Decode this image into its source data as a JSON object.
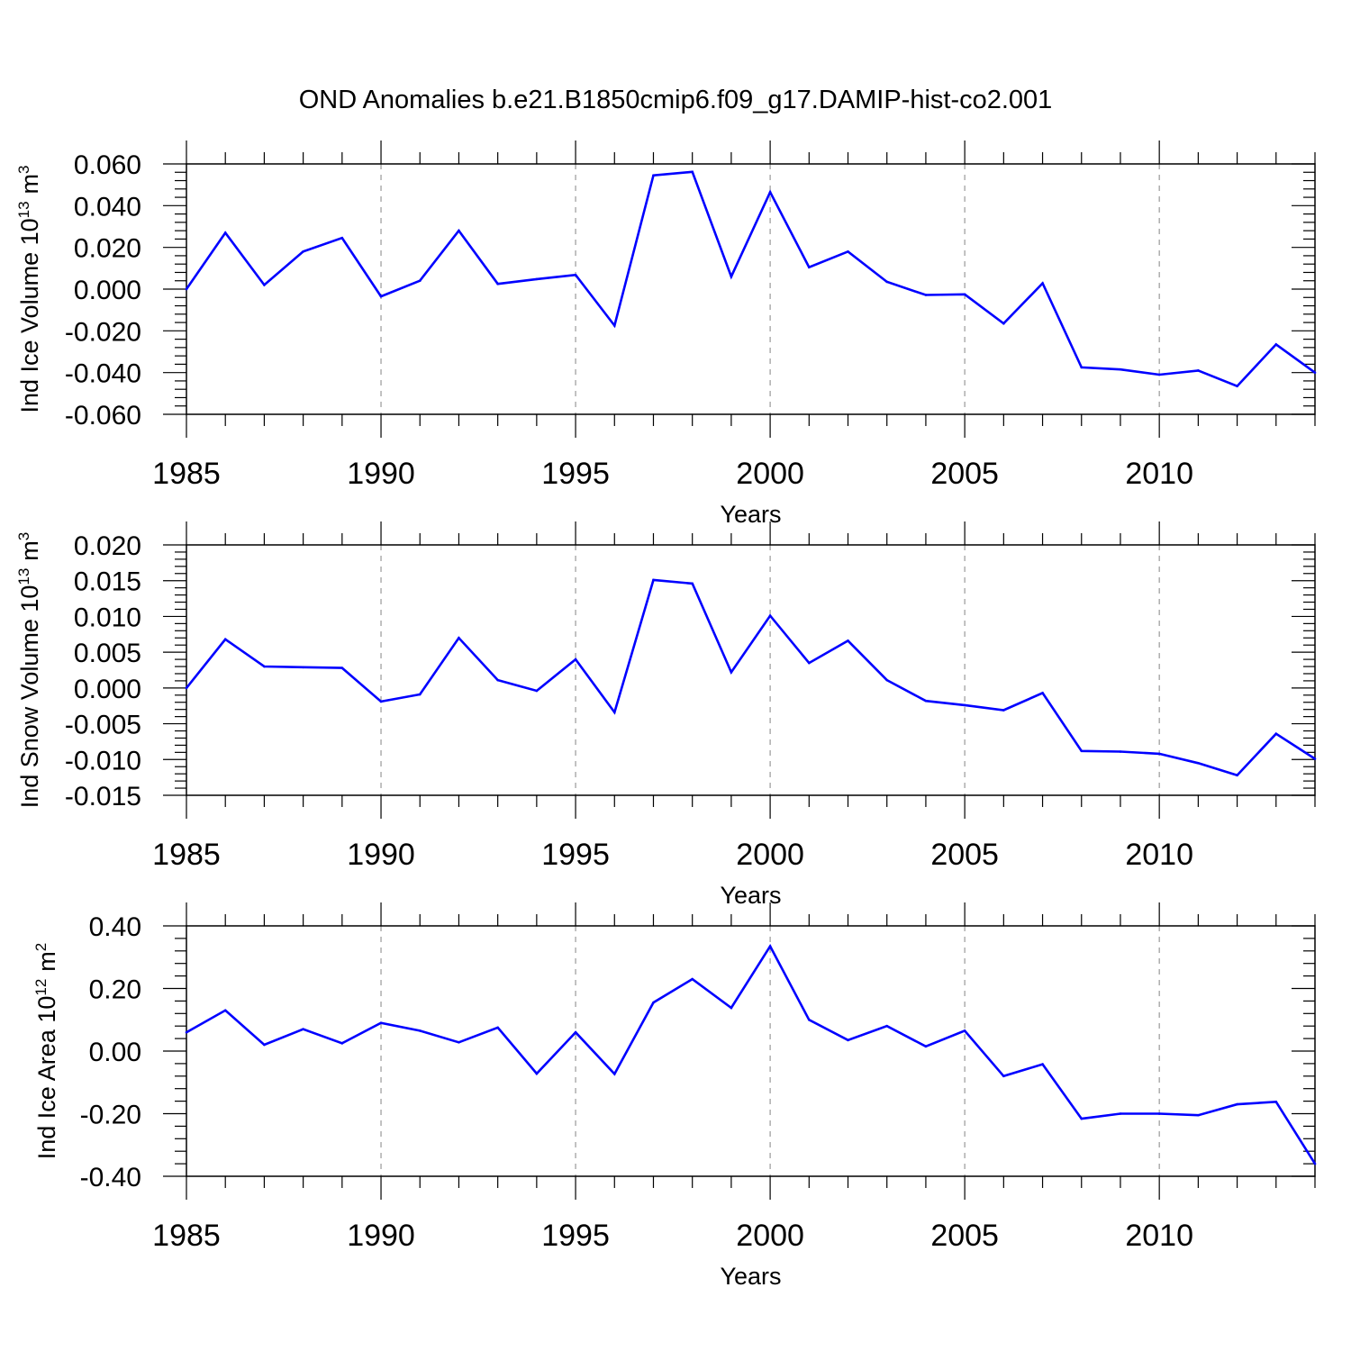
{
  "title": "OND Anomalies b.e21.B1850cmip6.f09_g17.DAMIP-hist-co2.001",
  "colors": {
    "line": "#0000ff",
    "axis": "#000000",
    "grid": "#999999"
  },
  "chart_data": [
    {
      "type": "line",
      "ylabel": "Ind Ice Volume 10",
      "ylabel_exp": "13",
      "ylabel_unit": "m",
      "ylabel_unit_exp": "3",
      "xlabel": "Years",
      "xlim": [
        1985,
        2014
      ],
      "ylim": [
        -0.06,
        0.06
      ],
      "x_ticks": [
        "1985",
        "1990",
        "1995",
        "2000",
        "2005",
        "2010"
      ],
      "y_ticks": [
        "0.060",
        "0.040",
        "0.020",
        "0.000",
        "-0.020",
        "-0.040",
        "-0.060"
      ],
      "x": [
        1985,
        1986,
        1987,
        1988,
        1989,
        1990,
        1991,
        1992,
        1993,
        1994,
        1995,
        1996,
        1997,
        1998,
        1999,
        2000,
        2001,
        2002,
        2003,
        2004,
        2005,
        2006,
        2007,
        2008,
        2009,
        2010,
        2011,
        2012,
        2013,
        2014
      ],
      "values": [
        0.0,
        0.027,
        0.002,
        0.018,
        0.0245,
        -0.0035,
        0.004,
        0.028,
        0.0025,
        0.0048,
        0.0068,
        -0.0175,
        0.0545,
        0.0562,
        0.006,
        0.0465,
        0.0105,
        0.018,
        0.0035,
        -0.0028,
        -0.0025,
        -0.0165,
        0.0028,
        -0.0375,
        -0.0385,
        -0.041,
        -0.039,
        -0.0465,
        -0.0265,
        -0.04
      ]
    },
    {
      "type": "line",
      "ylabel": "Ind Snow Volume 10",
      "ylabel_exp": "13",
      "ylabel_unit": "m",
      "ylabel_unit_exp": "3",
      "xlabel": "Years",
      "xlim": [
        1985,
        2014
      ],
      "ylim": [
        -0.015,
        0.02
      ],
      "x_ticks": [
        "1985",
        "1990",
        "1995",
        "2000",
        "2005",
        "2010"
      ],
      "y_ticks": [
        "0.020",
        "0.015",
        "0.010",
        "0.005",
        "0.000",
        "-0.005",
        "-0.010",
        "-0.015"
      ],
      "x": [
        1985,
        1986,
        1987,
        1988,
        1989,
        1990,
        1991,
        1992,
        1993,
        1994,
        1995,
        1996,
        1997,
        1998,
        1999,
        2000,
        2001,
        2002,
        2003,
        2004,
        2005,
        2006,
        2007,
        2008,
        2009,
        2010,
        2011,
        2012,
        2013,
        2014
      ],
      "values": [
        0.0,
        0.0068,
        0.003,
        0.0029,
        0.0028,
        -0.0019,
        -0.0009,
        0.007,
        0.0011,
        -0.0004,
        0.004,
        -0.0034,
        0.0151,
        0.0146,
        0.0022,
        0.0101,
        0.0035,
        0.0066,
        0.0011,
        -0.0018,
        -0.0024,
        -0.0031,
        -0.0007,
        -0.0088,
        -0.0089,
        -0.0092,
        -0.0105,
        -0.0122,
        -0.0064,
        -0.0099
      ]
    },
    {
      "type": "line",
      "ylabel": "Ind Ice Area 10",
      "ylabel_exp": "12",
      "ylabel_unit": "m",
      "ylabel_unit_exp": "2",
      "xlabel": "Years",
      "xlim": [
        1985,
        2014
      ],
      "ylim": [
        -0.4,
        0.4
      ],
      "x_ticks": [
        "1985",
        "1990",
        "1995",
        "2000",
        "2005",
        "2010"
      ],
      "y_ticks": [
        "0.40",
        "0.20",
        "0.00",
        "-0.20",
        "-0.40"
      ],
      "x": [
        1985,
        1986,
        1987,
        1988,
        1989,
        1990,
        1991,
        1992,
        1993,
        1994,
        1995,
        1996,
        1997,
        1998,
        1999,
        2000,
        2001,
        2002,
        2003,
        2004,
        2005,
        2006,
        2007,
        2008,
        2009,
        2010,
        2011,
        2012,
        2013,
        2014
      ],
      "values": [
        0.06,
        0.13,
        0.02,
        0.07,
        0.025,
        0.09,
        0.065,
        0.028,
        0.075,
        -0.072,
        0.06,
        -0.073,
        0.155,
        0.23,
        0.138,
        0.335,
        0.1,
        0.035,
        0.08,
        0.015,
        0.065,
        -0.08,
        -0.042,
        -0.216,
        -0.2,
        -0.2,
        -0.205,
        -0.17,
        -0.162,
        -0.36
      ]
    }
  ]
}
